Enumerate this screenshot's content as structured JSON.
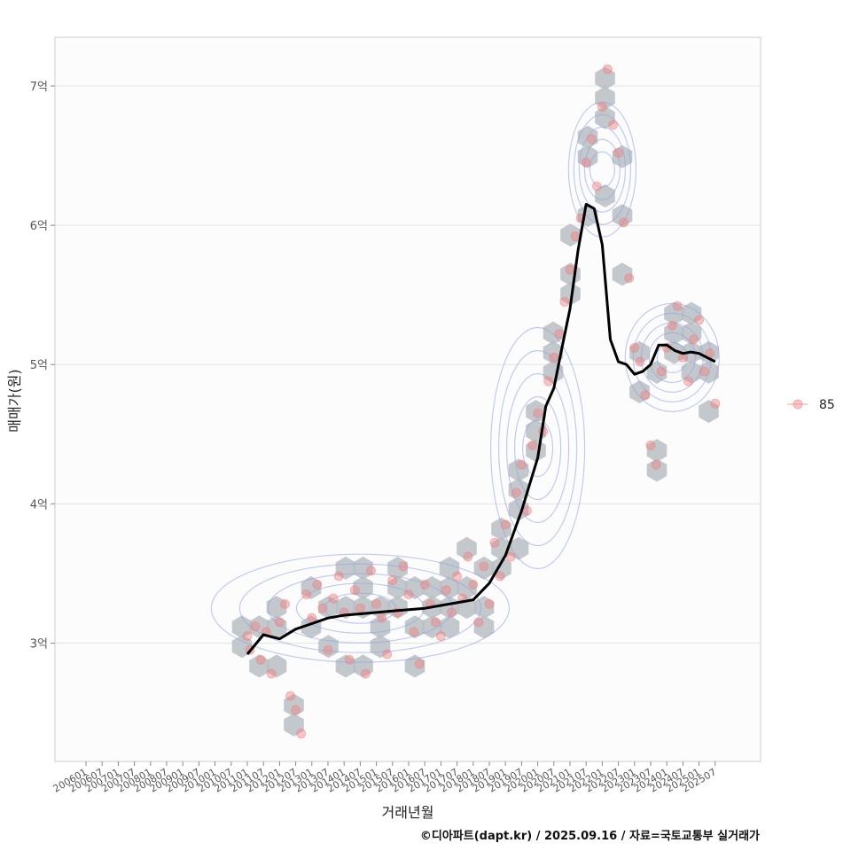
{
  "chart_data": {
    "type": "scatter",
    "xlabel": "거래년월",
    "ylabel": "매매가(원)",
    "caption": "©디아파트(dapt.kr) / 2025.09.16 / 자료=국토교통부 실거래가",
    "legend": {
      "placement": "right",
      "entries": [
        "85"
      ]
    },
    "grid": true,
    "ylim": [
      2.15,
      7.35
    ],
    "y_ticks": [
      {
        "value": 3,
        "label": "3억"
      },
      {
        "value": 4,
        "label": "4억"
      },
      {
        "value": 5,
        "label": "5억"
      },
      {
        "value": 6,
        "label": "6억"
      },
      {
        "value": 7,
        "label": "7억"
      }
    ],
    "x_ticks": [
      "200601",
      "200607",
      "200701",
      "200707",
      "200801",
      "200807",
      "200901",
      "200907",
      "201001",
      "201007",
      "201101",
      "201107",
      "201201",
      "201207",
      "201301",
      "201307",
      "201401",
      "201407",
      "201501",
      "201507",
      "201601",
      "201607",
      "201701",
      "201707",
      "201801",
      "201807",
      "201901",
      "201907",
      "202001",
      "202007",
      "202101",
      "202107",
      "202201",
      "202207",
      "202301",
      "202307",
      "202401",
      "202407",
      "202501",
      "202507"
    ],
    "series": [
      {
        "name": "85",
        "kind": "scatter",
        "color": "#f08080",
        "points": [
          [
            "201101",
            3.05
          ],
          [
            "201102",
            2.95
          ],
          [
            "201104",
            3.12
          ],
          [
            "201106",
            2.88
          ],
          [
            "201108",
            3.08
          ],
          [
            "201110",
            2.78
          ],
          [
            "201201",
            3.15
          ],
          [
            "201203",
            3.28
          ],
          [
            "201205",
            2.62
          ],
          [
            "201207",
            2.52
          ],
          [
            "201209",
            2.35
          ],
          [
            "201211",
            3.35
          ],
          [
            "201301",
            3.18
          ],
          [
            "201303",
            3.42
          ],
          [
            "201305",
            3.25
          ],
          [
            "201307",
            2.95
          ],
          [
            "201309",
            3.32
          ],
          [
            "201311",
            3.48
          ],
          [
            "201401",
            3.22
          ],
          [
            "201403",
            2.88
          ],
          [
            "201405",
            3.38
          ],
          [
            "201407",
            3.25
          ],
          [
            "201409",
            2.78
          ],
          [
            "201411",
            3.52
          ],
          [
            "201501",
            3.28
          ],
          [
            "201503",
            3.18
          ],
          [
            "201505",
            2.92
          ],
          [
            "201507",
            3.45
          ],
          [
            "201509",
            3.22
          ],
          [
            "201511",
            3.55
          ],
          [
            "201601",
            3.35
          ],
          [
            "201603",
            3.08
          ],
          [
            "201605",
            2.85
          ],
          [
            "201607",
            3.42
          ],
          [
            "201609",
            3.28
          ],
          [
            "201611",
            3.15
          ],
          [
            "201701",
            3.05
          ],
          [
            "201703",
            3.38
          ],
          [
            "201705",
            3.22
          ],
          [
            "201707",
            3.48
          ],
          [
            "201709",
            3.32
          ],
          [
            "201711",
            3.62
          ],
          [
            "201801",
            3.42
          ],
          [
            "201803",
            3.15
          ],
          [
            "201805",
            3.55
          ],
          [
            "201807",
            3.28
          ],
          [
            "201809",
            3.72
          ],
          [
            "201811",
            3.48
          ],
          [
            "201901",
            3.85
          ],
          [
            "201903",
            3.62
          ],
          [
            "201905",
            4.08
          ],
          [
            "201907",
            4.28
          ],
          [
            "201909",
            3.95
          ],
          [
            "201911",
            4.42
          ],
          [
            "202001",
            4.65
          ],
          [
            "202003",
            4.52
          ],
          [
            "202005",
            4.88
          ],
          [
            "202007",
            5.05
          ],
          [
            "202009",
            5.22
          ],
          [
            "202011",
            5.45
          ],
          [
            "202101",
            5.68
          ],
          [
            "202103",
            5.92
          ],
          [
            "202105",
            6.05
          ],
          [
            "202107",
            6.45
          ],
          [
            "202109",
            6.62
          ],
          [
            "202111",
            6.28
          ],
          [
            "202201",
            6.85
          ],
          [
            "202203",
            7.12
          ],
          [
            "202205",
            6.72
          ],
          [
            "202207",
            6.52
          ],
          [
            "202209",
            6.02
          ],
          [
            "202211",
            5.62
          ],
          [
            "202301",
            5.12
          ],
          [
            "202303",
            5.02
          ],
          [
            "202305",
            4.78
          ],
          [
            "202307",
            4.42
          ],
          [
            "202309",
            4.28
          ],
          [
            "202311",
            4.95
          ],
          [
            "202401",
            5.12
          ],
          [
            "202403",
            5.28
          ],
          [
            "202405",
            5.42
          ],
          [
            "202407",
            5.05
          ],
          [
            "202409",
            4.88
          ],
          [
            "202411",
            5.18
          ],
          [
            "202501",
            5.32
          ],
          [
            "202503",
            4.95
          ],
          [
            "202505",
            5.08
          ],
          [
            "202507",
            4.72
          ]
        ]
      },
      {
        "name": "",
        "kind": "line",
        "color": "#000000",
        "points": [
          [
            "201101",
            2.92
          ],
          [
            "201107",
            3.06
          ],
          [
            "201201",
            3.03
          ],
          [
            "201207",
            3.1
          ],
          [
            "201301",
            3.14
          ],
          [
            "201307",
            3.18
          ],
          [
            "201401",
            3.2
          ],
          [
            "201407",
            3.21
          ],
          [
            "201501",
            3.22
          ],
          [
            "201507",
            3.23
          ],
          [
            "201601",
            3.24
          ],
          [
            "201607",
            3.25
          ],
          [
            "201701",
            3.27
          ],
          [
            "201707",
            3.29
          ],
          [
            "201801",
            3.31
          ],
          [
            "201807",
            3.43
          ],
          [
            "201901",
            3.63
          ],
          [
            "201907",
            3.95
          ],
          [
            "202001",
            4.33
          ],
          [
            "202004",
            4.7
          ],
          [
            "202007",
            4.83
          ],
          [
            "202010",
            5.12
          ],
          [
            "202101",
            5.4
          ],
          [
            "202104",
            5.82
          ],
          [
            "202107",
            6.15
          ],
          [
            "202110",
            6.12
          ],
          [
            "202201",
            5.86
          ],
          [
            "202204",
            5.18
          ],
          [
            "202207",
            5.02
          ],
          [
            "202210",
            5.0
          ],
          [
            "202301",
            4.93
          ],
          [
            "202304",
            4.95
          ],
          [
            "202307",
            5.0
          ],
          [
            "202310",
            5.14
          ],
          [
            "202401",
            5.14
          ],
          [
            "202404",
            5.1
          ],
          [
            "202407",
            5.08
          ],
          [
            "202410",
            5.09
          ],
          [
            "202501",
            5.08
          ],
          [
            "202507",
            5.02
          ]
        ]
      }
    ],
    "overlays": [
      "hexbin-density",
      "density-contours"
    ]
  }
}
